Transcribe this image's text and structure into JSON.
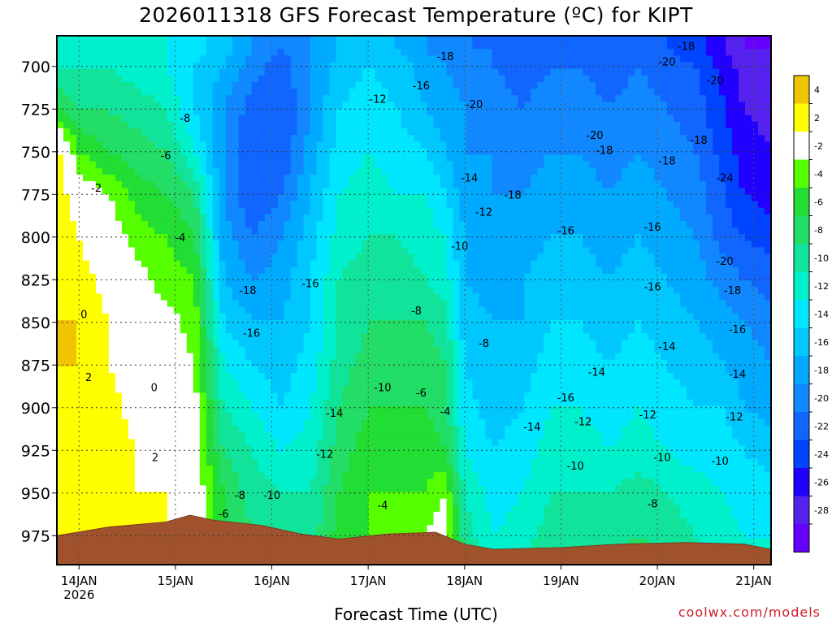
{
  "title": "2026011318 GFS Forecast Temperature (ºC) for KIPT",
  "credit": "coolwx.com/models",
  "chart_data": {
    "type": "contour",
    "title": "2026011318 GFS Forecast Temperature (ºC) for KIPT",
    "xlabel": "Forecast Time (UTC)",
    "ylabel": "",
    "x_ticks": [
      "14JAN",
      "15JAN",
      "16JAN",
      "17JAN",
      "18JAN",
      "19JAN",
      "20JAN",
      "21JAN"
    ],
    "x_sub_label": "2026",
    "y_ticks": [
      700,
      725,
      750,
      775,
      800,
      825,
      850,
      875,
      900,
      925,
      950,
      975
    ],
    "y_range_hpa": [
      682,
      992
    ],
    "x_range_days": [
      -0.23,
      7.18
    ],
    "grid": true,
    "colorbar": {
      "labels": [
        "4",
        "2",
        "-2",
        "-4",
        "-6",
        "-8",
        "-10",
        "-12",
        "-14",
        "-16",
        "-18",
        "-20",
        "-22",
        "-24",
        "-26",
        "-28"
      ],
      "colors": [
        "#f0c400",
        "#ffff00",
        "#ffffff",
        "#55ff00",
        "#22dd33",
        "#22dd66",
        "#11e49a",
        "#00f0cc",
        "#00e6ff",
        "#00c8ff",
        "#00aaff",
        "#1188ff",
        "#1166ff",
        "#0044ff",
        "#2200ff",
        "#5522ee",
        "#6600ff"
      ]
    },
    "series": [
      {
        "x": -0.2,
        "temps": [
          -10,
          -10,
          -6,
          2,
          3,
          4,
          3,
          4,
          4,
          3,
          3,
          4,
          2,
          2
        ]
      },
      {
        "x": 0.0,
        "temps": [
          -10,
          -10,
          -8,
          -4,
          0,
          2,
          3,
          4,
          4,
          4,
          3,
          3,
          4,
          2
        ]
      },
      {
        "x": 0.3,
        "temps": [
          -10,
          -10,
          -8,
          -6,
          -2,
          0,
          1,
          2,
          2,
          3,
          3,
          3,
          2,
          2
        ]
      },
      {
        "x": 0.6,
        "temps": [
          -11,
          -11,
          -9,
          -7,
          -5,
          -3,
          -1,
          0,
          1,
          1,
          2,
          2,
          2,
          2
        ]
      },
      {
        "x": 0.9,
        "temps": [
          -12,
          -12,
          -10,
          -8,
          -6,
          -4,
          -3,
          -1,
          0,
          1,
          1,
          2,
          2,
          2
        ]
      },
      {
        "x": 1.2,
        "temps": [
          -13,
          -14,
          -14,
          -12,
          -8,
          -6,
          -4,
          -3,
          -2,
          -1,
          -1,
          0,
          2,
          2
        ]
      },
      {
        "x": 1.5,
        "temps": [
          -15,
          -16,
          -18,
          -18,
          -18,
          -17,
          -16,
          -14,
          -12,
          -10,
          -8,
          -6,
          -6,
          -6
        ]
      },
      {
        "x": 1.8,
        "temps": [
          -18,
          -19,
          -21,
          -22,
          -22,
          -20,
          -18,
          -16,
          -14,
          -12,
          -10,
          -9,
          -8,
          -8
        ]
      },
      {
        "x": 2.1,
        "temps": [
          -20,
          -21,
          -22,
          -22,
          -20,
          -18,
          -17,
          -16,
          -15,
          -14,
          -12,
          -10,
          -9,
          -8
        ]
      },
      {
        "x": 2.4,
        "temps": [
          -18,
          -18,
          -18,
          -17,
          -16,
          -15,
          -14,
          -14,
          -13,
          -12,
          -11,
          -10,
          -9,
          -8
        ]
      },
      {
        "x": 2.7,
        "temps": [
          -16,
          -15,
          -14,
          -13,
          -12,
          -11,
          -10,
          -10,
          -9,
          -8,
          -7,
          -6,
          -5,
          -4
        ]
      },
      {
        "x": 3.0,
        "temps": [
          -15,
          -14,
          -13,
          -12,
          -11,
          -10,
          -9,
          -8,
          -7,
          -6,
          -5,
          -4,
          -4,
          -4
        ]
      },
      {
        "x": 3.3,
        "temps": [
          -16,
          -15,
          -14,
          -13,
          -12,
          -10,
          -9,
          -8,
          -7,
          -6,
          -5,
          -4,
          -3,
          -3
        ]
      },
      {
        "x": 3.6,
        "temps": [
          -18,
          -17,
          -16,
          -14,
          -12,
          -11,
          -10,
          -8,
          -7,
          -6,
          -5,
          -4,
          -2,
          -2
        ]
      },
      {
        "x": 3.8,
        "temps": [
          -19,
          -18,
          -17,
          -16,
          -14,
          -12,
          -11,
          -9,
          -8,
          -7,
          -6,
          -2,
          0,
          -2
        ]
      },
      {
        "x": 4.0,
        "temps": [
          -20,
          -19,
          -18,
          -18,
          -17,
          -16,
          -16,
          -15,
          -14,
          -13,
          -12,
          -10,
          -9,
          -8
        ]
      },
      {
        "x": 4.3,
        "temps": [
          -20,
          -20,
          -19,
          -18,
          -18,
          -18,
          -17,
          -16,
          -16,
          -15,
          -14,
          -13,
          -12,
          -11
        ]
      },
      {
        "x": 4.6,
        "temps": [
          -21,
          -21,
          -20,
          -19,
          -18,
          -17,
          -16,
          -16,
          -15,
          -14,
          -13,
          -12,
          -11,
          -10
        ]
      },
      {
        "x": 4.9,
        "temps": [
          -20,
          -20,
          -19,
          -18,
          -17,
          -16,
          -15,
          -14,
          -13,
          -12,
          -11,
          -10,
          -9,
          -8
        ]
      },
      {
        "x": 5.2,
        "temps": [
          -20,
          -20,
          -19,
          -18,
          -17,
          -16,
          -15,
          -14,
          -13,
          -12,
          -11,
          -10,
          -9,
          -8
        ]
      },
      {
        "x": 5.5,
        "temps": [
          -21,
          -21,
          -20,
          -19,
          -18,
          -17,
          -16,
          -15,
          -14,
          -13,
          -12,
          -10,
          -9,
          -8
        ]
      },
      {
        "x": 5.8,
        "temps": [
          -21,
          -20,
          -19,
          -18,
          -17,
          -16,
          -15,
          -14,
          -13,
          -12,
          -11,
          -9,
          -8,
          -7
        ]
      },
      {
        "x": 6.1,
        "temps": [
          -22,
          -21,
          -20,
          -19,
          -18,
          -17,
          -16,
          -15,
          -14,
          -13,
          -12,
          -10,
          -9,
          -8
        ]
      },
      {
        "x": 6.4,
        "temps": [
          -23,
          -22,
          -21,
          -20,
          -19,
          -18,
          -17,
          -16,
          -15,
          -14,
          -13,
          -11,
          -10,
          -9
        ]
      },
      {
        "x": 6.7,
        "temps": [
          -26,
          -25,
          -24,
          -23,
          -22,
          -21,
          -19,
          -17,
          -16,
          -14,
          -13,
          -12,
          -11,
          -10
        ]
      },
      {
        "x": 6.9,
        "temps": [
          -28,
          -27,
          -26,
          -25,
          -24,
          -22,
          -20,
          -18,
          -17,
          -16,
          -14,
          -13,
          -12,
          -11
        ]
      },
      {
        "x": 7.2,
        "temps": [
          -28,
          -28,
          -27,
          -26,
          -25,
          -23,
          -21,
          -19,
          -18,
          -17,
          -15,
          -13,
          -12,
          -11
        ]
      }
    ],
    "pressure_levels": [
      690,
      700,
      725,
      750,
      775,
      800,
      825,
      850,
      875,
      900,
      925,
      950,
      975,
      990
    ],
    "contour_labels": [
      {
        "t": "-2",
        "x": 0.18,
        "p": 771
      },
      {
        "t": "0",
        "x": 0.05,
        "p": 845
      },
      {
        "t": "2",
        "x": 0.1,
        "p": 882
      },
      {
        "t": "0",
        "x": 0.78,
        "p": 888
      },
      {
        "t": "2",
        "x": 0.79,
        "p": 929
      },
      {
        "t": "-4",
        "x": 1.05,
        "p": 800
      },
      {
        "t": "-6",
        "x": 0.9,
        "p": 752
      },
      {
        "t": "-8",
        "x": 1.1,
        "p": 730
      },
      {
        "t": "-6",
        "x": 1.5,
        "p": 962
      },
      {
        "t": "-8",
        "x": 1.67,
        "p": 951
      },
      {
        "t": "-10",
        "x": 2.0,
        "p": 951
      },
      {
        "t": "-16",
        "x": 1.79,
        "p": 856
      },
      {
        "t": "-18",
        "x": 1.75,
        "p": 831
      },
      {
        "t": "-16",
        "x": 2.4,
        "p": 827
      },
      {
        "t": "-14",
        "x": 2.65,
        "p": 903
      },
      {
        "t": "-12",
        "x": 2.55,
        "p": 927
      },
      {
        "t": "-12",
        "x": 3.1,
        "p": 719
      },
      {
        "t": "-10",
        "x": 3.15,
        "p": 888
      },
      {
        "t": "-8",
        "x": 3.5,
        "p": 843
      },
      {
        "t": "-6",
        "x": 3.55,
        "p": 891
      },
      {
        "t": "-4",
        "x": 3.8,
        "p": 902
      },
      {
        "t": "-4",
        "x": 3.15,
        "p": 957
      },
      {
        "t": "-16",
        "x": 3.55,
        "p": 711
      },
      {
        "t": "-18",
        "x": 3.8,
        "p": 694
      },
      {
        "t": "-20",
        "x": 4.1,
        "p": 722
      },
      {
        "t": "-14",
        "x": 4.05,
        "p": 765
      },
      {
        "t": "-12",
        "x": 4.2,
        "p": 785
      },
      {
        "t": "-10",
        "x": 3.95,
        "p": 805
      },
      {
        "t": "-8",
        "x": 4.2,
        "p": 862
      },
      {
        "t": "-18",
        "x": 4.5,
        "p": 775
      },
      {
        "t": "-16",
        "x": 5.05,
        "p": 796
      },
      {
        "t": "-14",
        "x": 4.7,
        "p": 911
      },
      {
        "t": "-16",
        "x": 5.05,
        "p": 894
      },
      {
        "t": "-12",
        "x": 5.23,
        "p": 908
      },
      {
        "t": "-10",
        "x": 5.15,
        "p": 934
      },
      {
        "t": "-14",
        "x": 5.37,
        "p": 879
      },
      {
        "t": "-20",
        "x": 5.35,
        "p": 740
      },
      {
        "t": "-18",
        "x": 5.45,
        "p": 749
      },
      {
        "t": "-16",
        "x": 5.95,
        "p": 794
      },
      {
        "t": "-16",
        "x": 5.95,
        "p": 829
      },
      {
        "t": "-14",
        "x": 6.1,
        "p": 864
      },
      {
        "t": "-12",
        "x": 5.9,
        "p": 904
      },
      {
        "t": "-10",
        "x": 6.05,
        "p": 929
      },
      {
        "t": "-8",
        "x": 5.95,
        "p": 956
      },
      {
        "t": "-20",
        "x": 6.1,
        "p": 697
      },
      {
        "t": "-18",
        "x": 6.3,
        "p": 688
      },
      {
        "t": "-18",
        "x": 6.1,
        "p": 755
      },
      {
        "t": "-18",
        "x": 6.43,
        "p": 743
      },
      {
        "t": "-20",
        "x": 6.6,
        "p": 708
      },
      {
        "t": "-24",
        "x": 6.7,
        "p": 765
      },
      {
        "t": "-20",
        "x": 6.7,
        "p": 814
      },
      {
        "t": "-18",
        "x": 6.78,
        "p": 831
      },
      {
        "t": "-16",
        "x": 6.83,
        "p": 854
      },
      {
        "t": "-14",
        "x": 6.83,
        "p": 880
      },
      {
        "t": "-12",
        "x": 6.8,
        "p": 905
      },
      {
        "t": "-10",
        "x": 6.65,
        "p": 931
      }
    ]
  }
}
